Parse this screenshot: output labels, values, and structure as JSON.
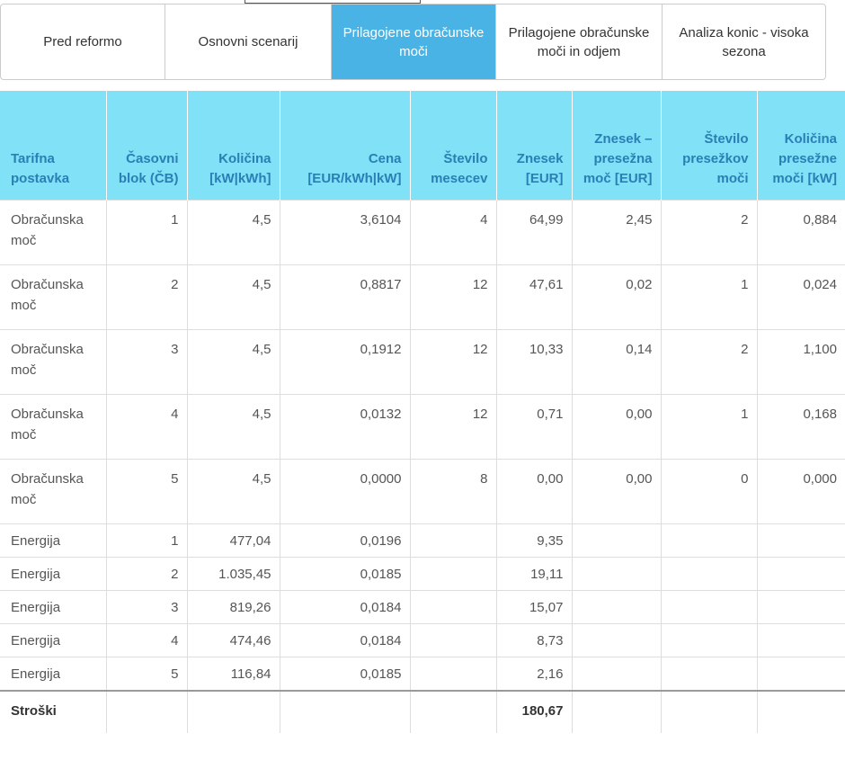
{
  "tabs": {
    "items": [
      "Pred reformo",
      "Osnovni scenarij",
      "Prilagojene obračunske moči",
      "Prilagojene obračunske moči in odjem",
      "Analiza konic - visoka sezona"
    ],
    "active": 2
  },
  "table": {
    "header": [
      "Tarifna postavka",
      "Časovni blok (ČB)",
      "Količina [kW|kWh]",
      "Cena [EUR/kWh|kW]",
      "Število mesecev",
      "Znesek [EUR]",
      "Znesek – presežna moč [EUR]",
      "Število presežkov moči",
      "Količina presežne moči [kW]"
    ],
    "rows": [
      [
        "Obračunska moč",
        "1",
        "4,5",
        "3,6104",
        "4",
        "64,99",
        "2,45",
        "2",
        "0,884"
      ],
      [
        "Obračunska moč",
        "2",
        "4,5",
        "0,8817",
        "12",
        "47,61",
        "0,02",
        "1",
        "0,024"
      ],
      [
        "Obračunska moč",
        "3",
        "4,5",
        "0,1912",
        "12",
        "10,33",
        "0,14",
        "2",
        "1,100"
      ],
      [
        "Obračunska moč",
        "4",
        "4,5",
        "0,0132",
        "12",
        "0,71",
        "0,00",
        "1",
        "0,168"
      ],
      [
        "Obračunska moč",
        "5",
        "4,5",
        "0,0000",
        "8",
        "0,00",
        "0,00",
        "0",
        "0,000"
      ],
      [
        "Energija",
        "1",
        "477,04",
        "0,0196",
        null,
        "9,35"
      ],
      [
        "Energija",
        "2",
        "1.035,45",
        "0,0185",
        null,
        "19,11"
      ],
      [
        "Energija",
        "3",
        "819,26",
        "0,0184",
        null,
        "15,07"
      ],
      [
        "Energija",
        "4",
        "474,46",
        "0,0184",
        null,
        "8,73"
      ],
      [
        "Energija",
        "5",
        "116,84",
        "0,0185",
        null,
        "2,16"
      ]
    ],
    "total": [
      "Stroški",
      null,
      null,
      null,
      null,
      "180,67"
    ]
  }
}
